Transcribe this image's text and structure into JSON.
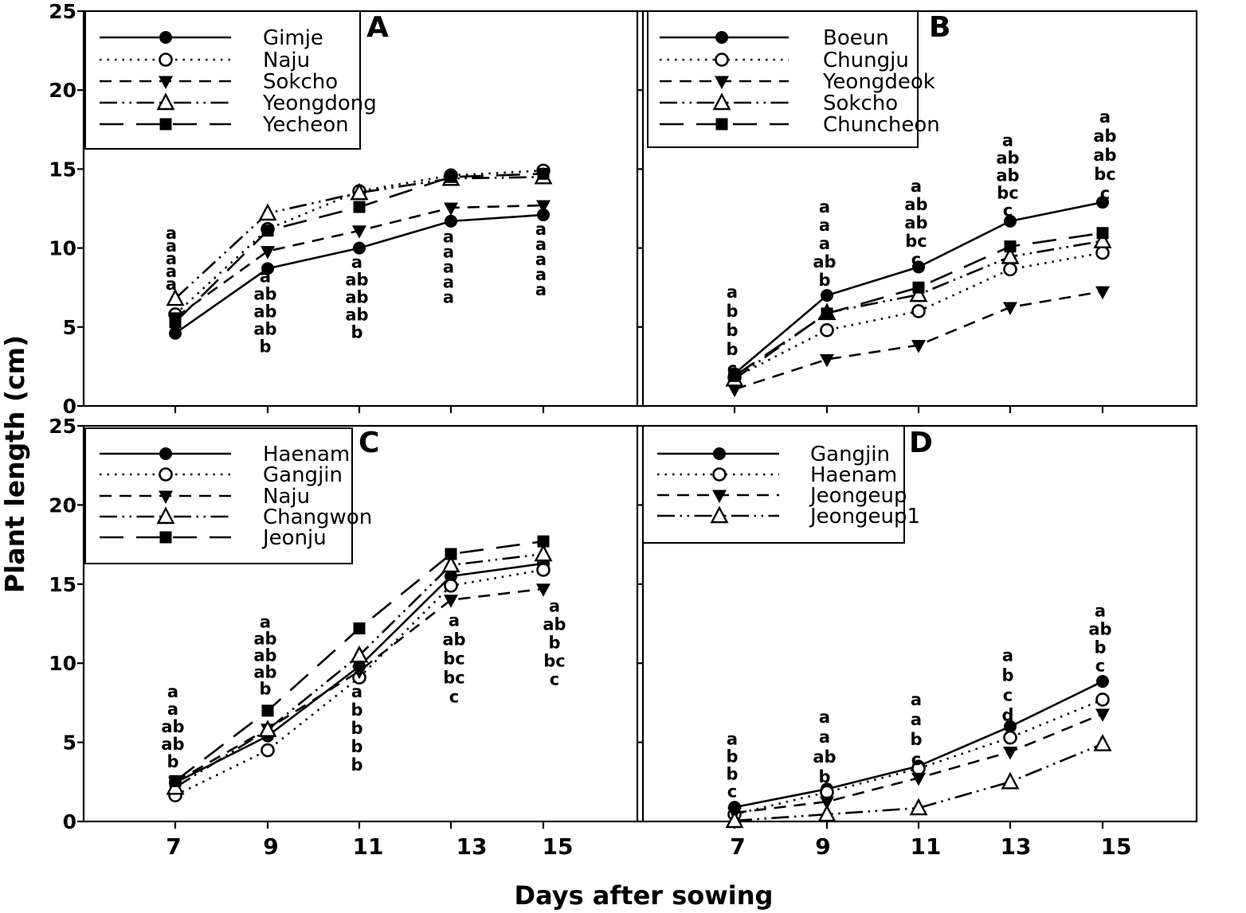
{
  "figure": {
    "x_axis_title": "Days after sowing",
    "y_axis_title": "Plant length (cm)",
    "x_tick_labels": [
      "7",
      "9",
      "11",
      "13",
      "15"
    ],
    "y_tick_labels": [
      "0",
      "5",
      "10",
      "15",
      "20",
      "25"
    ],
    "line_color": "#000000",
    "background_color": "#ffffff"
  },
  "chart_data": [
    {
      "panel": "A",
      "type": "line",
      "x": [
        7,
        9,
        11,
        13,
        15
      ],
      "ylim": [
        0,
        25
      ],
      "legend_position": "top-left",
      "series": [
        {
          "name": "Gimje",
          "marker": "circle-filled",
          "line": "solid",
          "values": [
            4.6,
            8.7,
            10.0,
            11.7,
            12.1
          ]
        },
        {
          "name": "Naju",
          "marker": "circle-open",
          "line": "dotted",
          "values": [
            5.8,
            11.2,
            13.6,
            14.6,
            14.9
          ]
        },
        {
          "name": "Sokcho",
          "marker": "triangle-down-filled",
          "line": "dashed",
          "values": [
            5.6,
            9.8,
            11.1,
            12.55,
            12.7
          ]
        },
        {
          "name": "Yeongdong",
          "marker": "triangle-open",
          "line": "dashdotdot",
          "values": [
            6.8,
            12.2,
            13.5,
            14.4,
            14.5
          ]
        },
        {
          "name": "Yecheon",
          "marker": "square-filled",
          "line": "longdash",
          "values": [
            5.3,
            11.1,
            12.6,
            14.5,
            14.7
          ]
        }
      ],
      "sig_letters": [
        {
          "day": 7,
          "letters": [
            "a",
            "a",
            "a",
            "a",
            "a"
          ],
          "top": 10.95,
          "sp": 16,
          "dx": -5
        },
        {
          "day": 9,
          "letters": [
            "a",
            "ab",
            "ab",
            "ab",
            "b"
          ],
          "top": 8.2,
          "sp": 22,
          "dx": -3
        },
        {
          "day": 11,
          "letters": [
            "a",
            "ab",
            "ab",
            "ab",
            "b"
          ],
          "top": 9.1,
          "sp": 22,
          "dx": -3
        },
        {
          "day": 13,
          "letters": [
            "a",
            "a",
            "a",
            "a",
            "a"
          ],
          "top": 10.7,
          "sp": 19,
          "dx": -3
        },
        {
          "day": 15,
          "letters": [
            "a",
            "a",
            "a",
            "a",
            "a"
          ],
          "top": 11.2,
          "sp": 19,
          "dx": -3
        }
      ]
    },
    {
      "panel": "B",
      "type": "line",
      "x": [
        7,
        9,
        11,
        13,
        15
      ],
      "ylim": [
        0,
        25
      ],
      "legend_position": "top-left",
      "series": [
        {
          "name": "Boeun",
          "marker": "circle-filled",
          "line": "solid",
          "values": [
            2.05,
            7.0,
            8.8,
            11.7,
            12.9
          ]
        },
        {
          "name": "Chungju",
          "marker": "circle-open",
          "line": "dotted",
          "values": [
            1.8,
            4.8,
            6.0,
            8.65,
            9.7
          ]
        },
        {
          "name": "Yeongdeok",
          "marker": "triangle-down-filled",
          "line": "dashed",
          "values": [
            1.05,
            2.95,
            3.85,
            6.25,
            7.25
          ]
        },
        {
          "name": "Sokcho",
          "marker": "triangle-open",
          "line": "dashdotdot",
          "values": [
            1.7,
            5.9,
            7.05,
            9.45,
            10.45
          ]
        },
        {
          "name": "Chuncheon",
          "marker": "square-filled",
          "line": "longdash",
          "values": [
            1.9,
            5.85,
            7.5,
            10.1,
            10.95
          ]
        }
      ],
      "sig_letters": [
        {
          "day": 7,
          "letters": [
            "a",
            "b",
            "b",
            "b",
            "c"
          ],
          "top": 7.2,
          "sp": 24,
          "dx": -3
        },
        {
          "day": 9,
          "letters": [
            "a",
            "a",
            "a",
            "ab",
            "b"
          ],
          "top": 12.6,
          "sp": 23,
          "dx": -3
        },
        {
          "day": 11,
          "letters": [
            "a",
            "ab",
            "ab",
            "bc",
            "c"
          ],
          "top": 13.9,
          "sp": 23,
          "dx": -3
        },
        {
          "day": 13,
          "letters": [
            "a",
            "ab",
            "ab",
            "bc",
            "c"
          ],
          "top": 16.8,
          "sp": 22,
          "dx": -3
        },
        {
          "day": 15,
          "letters": [
            "a",
            "ab",
            "ab",
            "bc",
            "c"
          ],
          "top": 18.3,
          "sp": 24,
          "dx": 3
        }
      ]
    },
    {
      "panel": "C",
      "type": "line",
      "x": [
        7,
        9,
        11,
        13,
        15
      ],
      "ylim": [
        0,
        25
      ],
      "legend_position": "top-left",
      "series": [
        {
          "name": "Haenam",
          "marker": "circle-filled",
          "line": "solid",
          "values": [
            2.45,
            5.4,
            9.8,
            15.5,
            16.3
          ]
        },
        {
          "name": "Gangjin",
          "marker": "circle-open",
          "line": "dotted",
          "values": [
            1.65,
            4.5,
            9.1,
            14.9,
            15.9
          ]
        },
        {
          "name": "Naju",
          "marker": "triangle-down-filled",
          "line": "dashed",
          "values": [
            2.5,
            5.85,
            9.5,
            14.0,
            14.7
          ]
        },
        {
          "name": "Changwon",
          "marker": "triangle-open",
          "line": "dashdotdot",
          "values": [
            2.15,
            5.8,
            10.5,
            16.2,
            16.9
          ]
        },
        {
          "name": "Jeonju",
          "marker": "square-filled",
          "line": "longdash",
          "values": [
            2.55,
            7.0,
            12.2,
            16.9,
            17.7
          ]
        }
      ],
      "sig_letters": [
        {
          "day": 7,
          "letters": [
            "a",
            "a",
            "ab",
            "ab",
            "b"
          ],
          "top": 8.2,
          "sp": 22,
          "dx": -3
        },
        {
          "day": 9,
          "letters": [
            "a",
            "ab",
            "ab",
            "ab",
            "b"
          ],
          "top": 12.6,
          "sp": 21,
          "dx": -3
        },
        {
          "day": 11,
          "letters": [
            "a",
            "b",
            "b",
            "b",
            "b"
          ],
          "top": 8.2,
          "sp": 23,
          "dx": -3
        },
        {
          "day": 13,
          "letters": [
            "a",
            "ab",
            "bc",
            "bc",
            "c"
          ],
          "top": 12.7,
          "sp": 24,
          "dx": 4
        },
        {
          "day": 15,
          "letters": [
            "a",
            "ab",
            "b",
            "bc",
            "c"
          ],
          "top": 13.6,
          "sp": 23,
          "dx": 14
        }
      ]
    },
    {
      "panel": "D",
      "type": "line",
      "x": [
        7,
        9,
        11,
        13,
        15
      ],
      "ylim": [
        0,
        25
      ],
      "legend_position": "top-left",
      "series": [
        {
          "name": "Gangjin",
          "marker": "circle-filled",
          "line": "solid",
          "values": [
            0.9,
            2.05,
            3.5,
            6.0,
            8.85
          ]
        },
        {
          "name": "Haenam",
          "marker": "circle-open",
          "line": "dotted",
          "values": [
            0.45,
            1.85,
            3.35,
            5.3,
            7.7
          ]
        },
        {
          "name": "Jeongeup",
          "marker": "triangle-down-filled",
          "line": "dashed",
          "values": [
            0.55,
            1.25,
            2.75,
            4.4,
            6.8
          ]
        },
        {
          "name": "Jeongeup1",
          "marker": "triangle-open",
          "line": "dashdotdot",
          "values": [
            0.05,
            0.45,
            0.85,
            2.5,
            4.9
          ]
        }
      ],
      "sig_letters": [
        {
          "day": 7,
          "letters": [
            "a",
            "b",
            "b",
            "c"
          ],
          "top": 5.2,
          "sp": 22,
          "dx": -3
        },
        {
          "day": 9,
          "letters": [
            "a",
            "a",
            "ab",
            "b"
          ],
          "top": 6.6,
          "sp": 25,
          "dx": -3
        },
        {
          "day": 11,
          "letters": [
            "a",
            "a",
            "b",
            "c"
          ],
          "top": 7.7,
          "sp": 25,
          "dx": -3
        },
        {
          "day": 13,
          "letters": [
            "a",
            "b",
            "c",
            "d"
          ],
          "top": 10.5,
          "sp": 25,
          "dx": -3
        },
        {
          "day": 15,
          "letters": [
            "a",
            "ab",
            "b",
            "c"
          ],
          "top": 13.3,
          "sp": 23,
          "dx": -3
        }
      ]
    }
  ]
}
